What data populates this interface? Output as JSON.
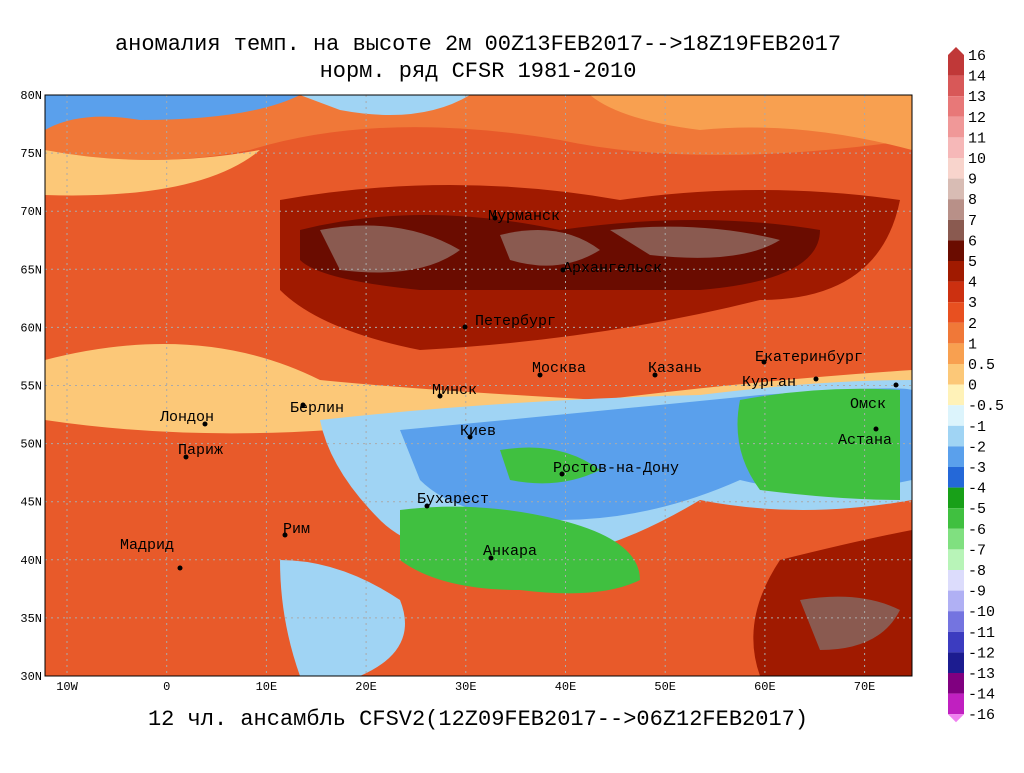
{
  "header": {
    "title": "аномалия темп. на высоте 2м 00Z13FEB2017-->18Z19FEB2017",
    "subtitle": "норм. ряд CFSR 1981-2010"
  },
  "footer": "12 чл. ансамбль CFSV2(12Z09FEB2017-->06Z12FEB2017)",
  "map": {
    "lat_labels": [
      "80N",
      "75N",
      "70N",
      "65N",
      "60N",
      "55N",
      "50N",
      "45N",
      "40N",
      "35N",
      "30N"
    ],
    "lon_labels": [
      "10W",
      "0",
      "10E",
      "20E",
      "30E",
      "40E",
      "50E",
      "60E",
      "70E"
    ],
    "cities": [
      "Мурманск",
      "Архангельск",
      "Петербург",
      "Москва",
      "Казань",
      "Екатеринбург",
      "Курган",
      "Омск",
      "Астана",
      "Минск",
      "Берлин",
      "Лондон",
      "Париж",
      "Киев",
      "Ростов-на-Дону",
      "Бухарест",
      "Рим",
      "Мадрид",
      "Анкара"
    ]
  },
  "colorbar": {
    "labels": [
      16,
      14,
      13,
      12,
      11,
      10,
      9,
      8,
      7,
      6,
      5,
      4,
      3,
      2,
      1,
      0.5,
      0,
      -0.5,
      -1,
      -2,
      -3,
      -4,
      -5,
      -6,
      -7,
      -8,
      -9,
      -10,
      -11,
      -12,
      -13,
      -14,
      -16
    ],
    "colors": [
      "#c03838",
      "#d85858",
      "#e87878",
      "#f09898",
      "#f6b8b8",
      "#f8d4cc",
      "#d8bcb4",
      "#b89088",
      "#8a5a50",
      "#6a0c00",
      "#a01a00",
      "#cc3010",
      "#e85020",
      "#f07838",
      "#f8a050",
      "#fcc878",
      "#fff2b8",
      "#dcf4fc",
      "#a0d4f4",
      "#5aa0ec",
      "#2468d8",
      "#18a018",
      "#40c040",
      "#80e080",
      "#b8f4b8",
      "#dcdcfc",
      "#b0b0f4",
      "#7474e0",
      "#3c3cc0",
      "#1c1c90",
      "#800080",
      "#c020c0"
    ]
  }
}
